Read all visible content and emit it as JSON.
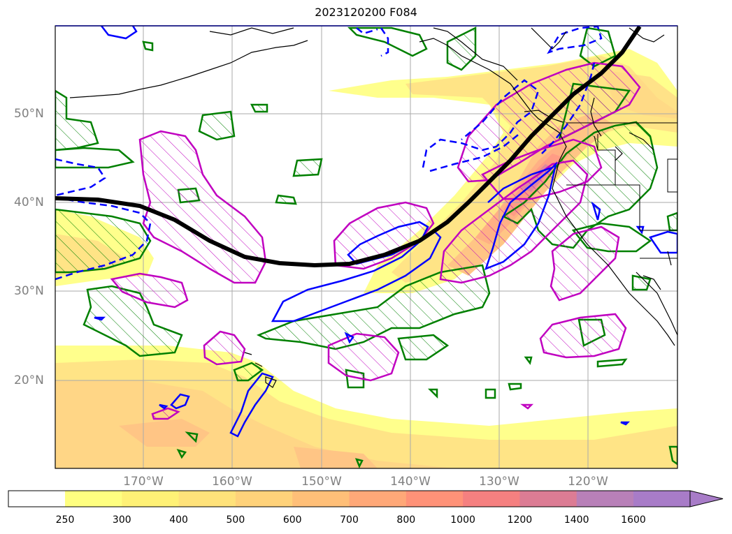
{
  "title": "2023120200 F084",
  "lat_labels": [
    "50°N",
    "40°N",
    "30°N",
    "20°N"
  ],
  "lon_labels": [
    "170°W",
    "160°W",
    "150°W",
    "140°W",
    "130°W",
    "120°W"
  ],
  "colorbar": {
    "levels": [
      "250",
      "300",
      "400",
      "500",
      "600",
      "700",
      "800",
      "1000",
      "1200",
      "1400",
      "1600"
    ],
    "colors": [
      "#ffff80",
      "#fff176",
      "#ffe27a",
      "#ffd27a",
      "#ffbf78",
      "#ffa878",
      "#ff9278",
      "#f58080",
      "#dc7c94",
      "#b880b8",
      "#a87cc8"
    ],
    "extend": "max"
  },
  "legend_colors": {
    "jet_axis": "#000000",
    "magenta_contours": "#c000c0",
    "green_contours": "#008000",
    "blue_contours": "#0000ff",
    "coastline": "#000000"
  }
}
